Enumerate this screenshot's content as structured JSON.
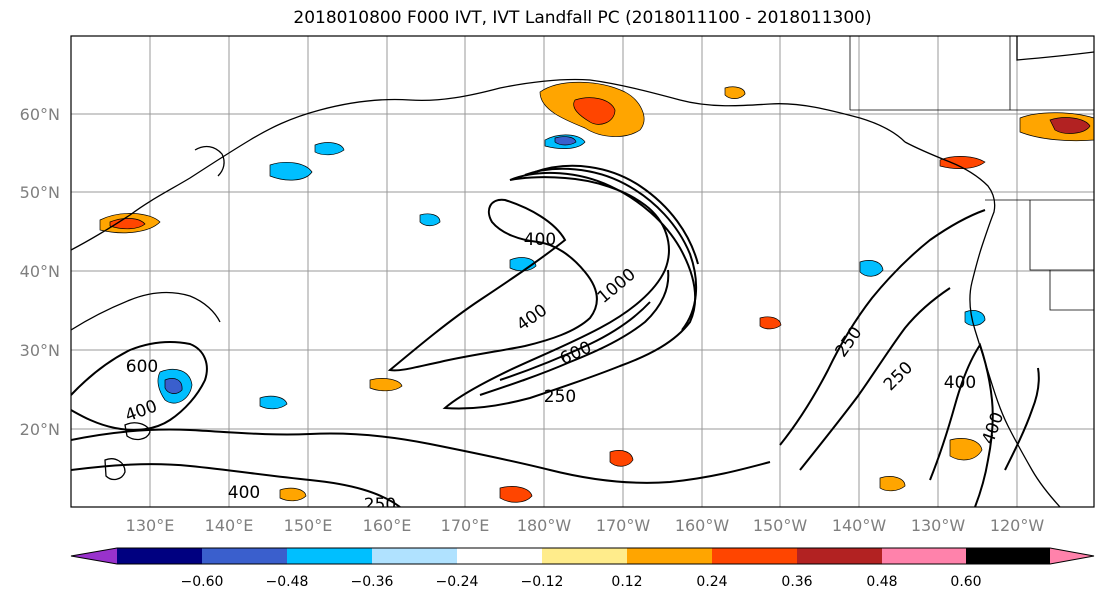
{
  "title": "2018010800 F000 IVT, IVT Landfall PC (2018011100 - 2018011300)",
  "map": {
    "lat_labels": [
      "60°N",
      "50°N",
      "40°N",
      "30°N",
      "20°N"
    ],
    "lon_labels": [
      "130°E",
      "140°E",
      "150°E",
      "160°E",
      "170°E",
      "180°W",
      "170°W",
      "160°W",
      "150°W",
      "140°W",
      "130°W",
      "120°W"
    ],
    "contour_labels": [
      "400",
      "1000",
      "400",
      "600",
      "250",
      "600",
      "400",
      "400",
      "250",
      "250",
      "250",
      "400",
      "400"
    ]
  },
  "colorbar": {
    "colors": [
      "#9932cc",
      "#000080",
      "#3a5fcd",
      "#00bfff",
      "#b0e2ff",
      "#ffffff",
      "#ffec8b",
      "#ffa500",
      "#ff4500",
      "#b22222",
      "#ff82ab"
    ],
    "tick_labels": [
      "−0.60",
      "−0.48",
      "−0.36",
      "−0.24",
      "−0.12",
      "0.12",
      "0.24",
      "0.36",
      "0.48",
      "0.60"
    ]
  }
}
